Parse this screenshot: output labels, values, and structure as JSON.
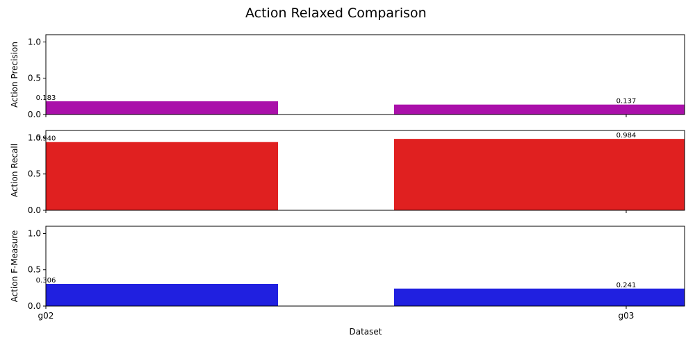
{
  "chart_data": {
    "type": "bar",
    "title": "Action Relaxed Comparison",
    "xlabel": "Dataset",
    "categories": [
      "g02",
      "g03"
    ],
    "ylim": [
      0,
      1.1
    ],
    "yticks": [
      "0.0",
      "0.5",
      "1.0"
    ],
    "grid": false,
    "panels": [
      {
        "ylabel": "Action Precision",
        "color": "#aa10aa",
        "values": [
          0.183,
          0.137
        ],
        "labels": [
          "0.183",
          "0.137"
        ]
      },
      {
        "ylabel": "Action Recall",
        "color": "#e02020",
        "values": [
          0.94,
          0.984
        ],
        "labels": [
          "0.940",
          "0.984"
        ]
      },
      {
        "ylabel": "Action F-Measure",
        "color": "#2020e0",
        "values": [
          0.306,
          0.241
        ],
        "labels": [
          "0.306",
          "0.241"
        ]
      }
    ]
  }
}
